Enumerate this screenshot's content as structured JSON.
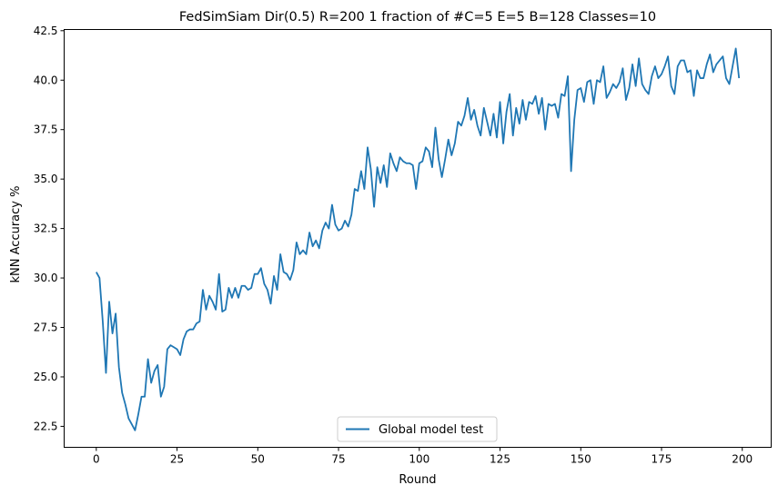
{
  "chart_data": {
    "type": "line",
    "title": "FedSimSiam Dir(0.5) R=200 1 fraction of #C=5 E=5 B=128  Classes=10",
    "xlabel": "Round",
    "ylabel": "kNN Accuracy %",
    "xlim": [
      -9.95,
      208.95
    ],
    "ylim": [
      21.44,
      42.56
    ],
    "xticks": [
      0,
      25,
      50,
      75,
      100,
      125,
      150,
      175,
      200
    ],
    "yticks": [
      22.5,
      25.0,
      27.5,
      30.0,
      32.5,
      35.0,
      37.5,
      40.0,
      42.5
    ],
    "xtick_labels": [
      "0",
      "25",
      "50",
      "75",
      "100",
      "125",
      "150",
      "175",
      "200"
    ],
    "ytick_labels": [
      "22.5",
      "25.0",
      "27.5",
      "30.0",
      "32.5",
      "35.0",
      "37.5",
      "40.0",
      "42.5"
    ],
    "grid": false,
    "legend_position": "bottom-center",
    "series": [
      {
        "name": "Global model test",
        "color": "#1f77b4",
        "values": [
          30.3,
          30.0,
          27.8,
          25.2,
          28.8,
          27.2,
          28.2,
          25.5,
          24.2,
          23.6,
          22.9,
          22.6,
          22.3,
          23.1,
          24.0,
          24.0,
          25.9,
          24.7,
          25.3,
          25.6,
          24.0,
          24.5,
          26.4,
          26.6,
          26.5,
          26.4,
          26.1,
          26.9,
          27.3,
          27.4,
          27.4,
          27.7,
          27.8,
          29.4,
          28.4,
          29.1,
          28.8,
          28.4,
          30.2,
          28.3,
          28.4,
          29.5,
          29.0,
          29.5,
          29.0,
          29.6,
          29.6,
          29.4,
          29.5,
          30.2,
          30.2,
          30.5,
          29.7,
          29.4,
          28.7,
          30.1,
          29.4,
          31.2,
          30.3,
          30.2,
          29.9,
          30.4,
          31.8,
          31.2,
          31.4,
          31.2,
          32.3,
          31.6,
          31.9,
          31.5,
          32.4,
          32.8,
          32.5,
          33.7,
          32.7,
          32.4,
          32.5,
          32.9,
          32.6,
          33.2,
          34.5,
          34.4,
          35.4,
          34.5,
          36.6,
          35.5,
          33.6,
          35.6,
          34.8,
          35.7,
          34.6,
          36.3,
          35.8,
          35.4,
          36.1,
          35.9,
          35.8,
          35.8,
          35.7,
          34.5,
          35.8,
          35.9,
          36.6,
          36.4,
          35.6,
          37.6,
          36.0,
          35.1,
          36.0,
          37.0,
          36.2,
          36.8,
          37.9,
          37.7,
          38.2,
          39.1,
          38.0,
          38.5,
          37.7,
          37.2,
          38.6,
          37.9,
          37.2,
          38.3,
          37.1,
          38.9,
          36.8,
          38.4,
          39.3,
          37.2,
          38.6,
          37.8,
          39.0,
          38.0,
          38.9,
          38.8,
          39.2,
          38.3,
          39.1,
          37.5,
          38.8,
          38.7,
          38.8,
          38.1,
          39.3,
          39.2,
          40.2,
          35.4,
          38.0,
          39.5,
          39.6,
          38.9,
          39.9,
          40.0,
          38.8,
          40.0,
          39.9,
          40.7,
          39.1,
          39.4,
          39.8,
          39.6,
          39.9,
          40.6,
          39.0,
          39.6,
          40.8,
          39.7,
          41.1,
          39.8,
          39.5,
          39.3,
          40.2,
          40.7,
          40.1,
          40.3,
          40.7,
          41.2,
          39.7,
          39.3,
          40.7,
          41.0,
          41.0,
          40.4,
          40.5,
          39.2,
          40.5,
          40.1,
          40.1,
          40.8,
          41.3,
          40.4,
          40.8,
          41.0,
          41.2,
          40.1,
          39.8,
          40.7,
          41.6,
          40.1
        ]
      }
    ]
  }
}
